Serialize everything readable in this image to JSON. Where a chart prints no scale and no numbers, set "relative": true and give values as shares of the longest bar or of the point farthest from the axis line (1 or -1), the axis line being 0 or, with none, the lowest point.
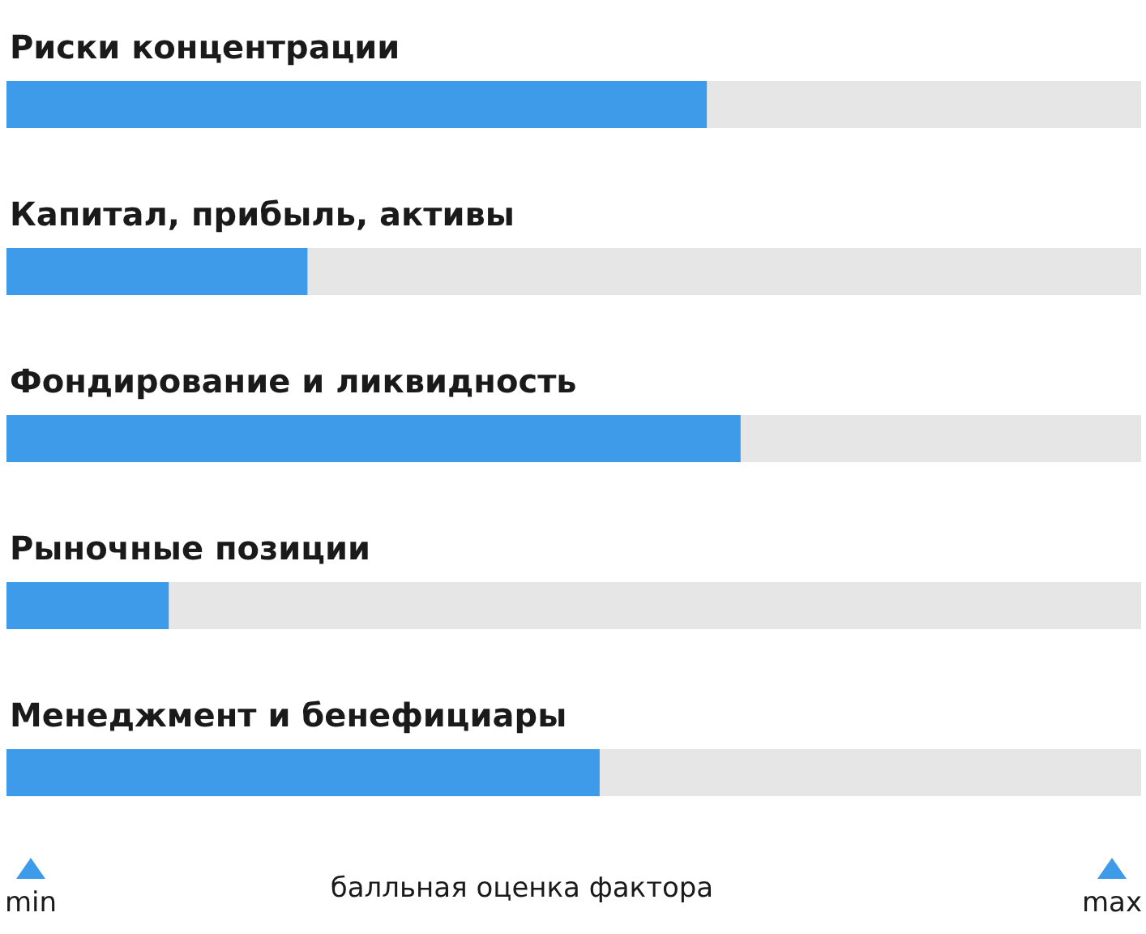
{
  "chart_data": {
    "type": "bar",
    "orientation": "horizontal",
    "relative": true,
    "categories": [
      "Риски концентрации",
      "Капитал, прибыль, активы",
      "Фондирование и ликвидность",
      "Рыночные позиции",
      "Менеджмент и бенефициары"
    ],
    "values": [
      0.954,
      0.41,
      1,
      0.221,
      0.808
    ],
    "color": "#3d9be9",
    "annotations": [
      "min",
      "max"
    ],
    "xlabel": "балльная оценка фактора"
  }
}
